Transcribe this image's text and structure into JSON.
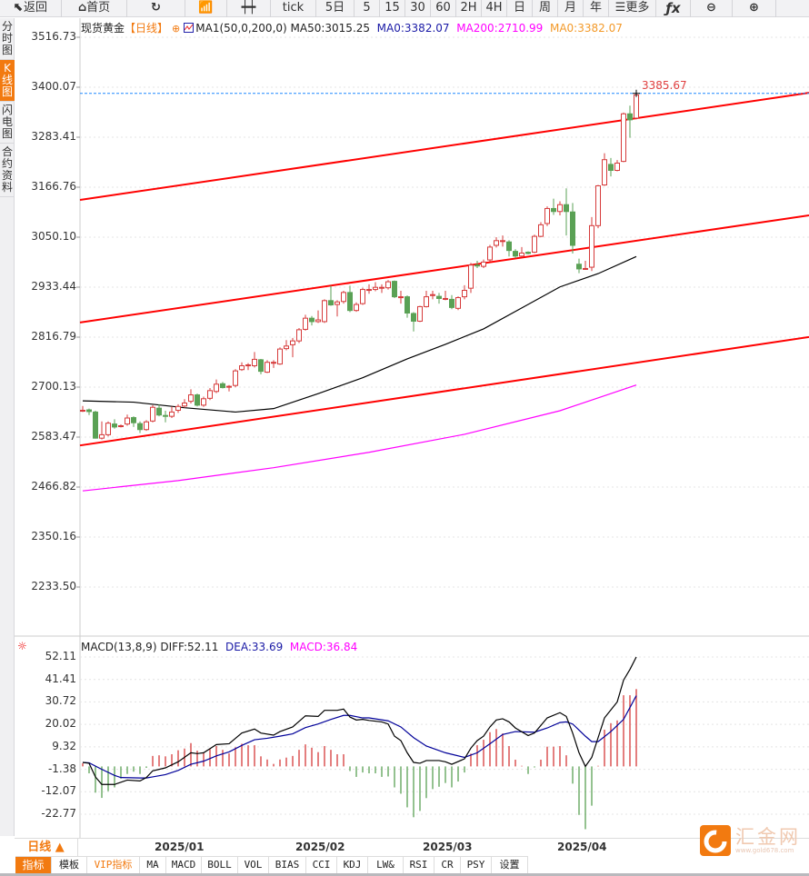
{
  "toolbar": {
    "items": [
      {
        "label": "返回",
        "icon": "back-arrow-icon"
      },
      {
        "label": "首页",
        "icon": "home-icon"
      },
      {
        "label": "",
        "icon": "refresh-icon"
      },
      {
        "label": "",
        "icon": "indicator-chart-icon"
      },
      {
        "label": "",
        "icon": "candlestick-icon"
      },
      {
        "label": "tick"
      },
      {
        "label": "5日"
      },
      {
        "label": "5"
      },
      {
        "label": "15"
      },
      {
        "label": "30"
      },
      {
        "label": "60"
      },
      {
        "label": "2H"
      },
      {
        "label": "4H"
      },
      {
        "label": "日"
      },
      {
        "label": "周"
      },
      {
        "label": "月"
      },
      {
        "label": "年"
      },
      {
        "label": "更多",
        "icon": "menu-icon"
      },
      {
        "label": "",
        "icon": "fx-icon"
      },
      {
        "label": "",
        "icon": "zoom-out-icon"
      },
      {
        "label": "",
        "icon": "zoom-in-icon"
      }
    ]
  },
  "side_tabs": [
    {
      "label": "分时图"
    },
    {
      "label": "K线图",
      "active": true
    },
    {
      "label": "闪电图"
    },
    {
      "label": "合约资料"
    }
  ],
  "legend": {
    "symbol": "现货黄金",
    "period": "【日线】",
    "ma_name": "MA1(50,0,200,0)",
    "ma50": "MA50:3015.25",
    "ma0a": "MA0:3382.07",
    "ma200": "MA200:2710.99",
    "ma0b": "MA0:3382.07"
  },
  "macd_legend": {
    "name": "MACD(13,8,9)",
    "diff": "DIFF:52.11",
    "dea": "DEA:33.69",
    "macd": "MACD:36.84"
  },
  "price_axis": [
    "3516.73",
    "3400.07",
    "3283.41",
    "3166.76",
    "3050.10",
    "2933.44",
    "2816.79",
    "2700.13",
    "2583.47",
    "2466.82",
    "2350.16",
    "2233.50"
  ],
  "macd_axis": [
    "52.11",
    "41.41",
    "30.72",
    "20.02",
    "9.32",
    "-1.38",
    "-12.07",
    "-22.77"
  ],
  "last_price": "3385.67",
  "date_labels": [
    "2025/01",
    "2025/02",
    "2025/03",
    "2025/04"
  ],
  "period_button": "日线 ▲",
  "bottom_tabs": [
    "指标",
    "模板",
    "VIP指标",
    "MA",
    "MACD",
    "BOLL",
    "VOL",
    "BIAS",
    "CCI",
    "KDJ",
    "LW&",
    "RSI",
    "CR",
    "PSY",
    "设置"
  ],
  "logo": {
    "text": "汇金网",
    "sub": "www.gold678.com"
  },
  "colors": {
    "up": "#d63a3a",
    "down": "#5aa155",
    "ma50": "#000000",
    "ma200": "#ff00ff",
    "trendline": "#ff0000",
    "dea": "#000099",
    "accent": "#f27a10",
    "last_price_line": "#1e88ff"
  },
  "chart_data": [
    {
      "type": "candlestick",
      "ylim": [
        2200,
        3540
      ],
      "ohlc": [
        [
          2646,
          2656,
          2642,
          2646
        ],
        [
          2647,
          2650,
          2635,
          2643
        ],
        [
          2642,
          2645,
          2580,
          2581
        ],
        [
          2581,
          2620,
          2578,
          2589
        ],
        [
          2589,
          2620,
          2585,
          2616
        ],
        [
          2614,
          2625,
          2603,
          2607
        ],
        [
          2609,
          2613,
          2606,
          2610
        ],
        [
          2614,
          2636,
          2610,
          2628
        ],
        [
          2629,
          2632,
          2607,
          2617
        ],
        [
          2615,
          2620,
          2593,
          2601
        ],
        [
          2601,
          2623,
          2598,
          2619
        ],
        [
          2621,
          2658,
          2618,
          2653
        ],
        [
          2651,
          2660,
          2632,
          2635
        ],
        [
          2634,
          2645,
          2618,
          2632
        ],
        [
          2632,
          2655,
          2628,
          2642
        ],
        [
          2646,
          2660,
          2640,
          2655
        ],
        [
          2656,
          2672,
          2652,
          2663
        ],
        [
          2667,
          2695,
          2662,
          2682
        ],
        [
          2682,
          2685,
          2655,
          2658
        ],
        [
          2658,
          2678,
          2654,
          2673
        ],
        [
          2674,
          2698,
          2670,
          2692
        ],
        [
          2690,
          2718,
          2686,
          2707
        ],
        [
          2708,
          2712,
          2697,
          2699
        ],
        [
          2700,
          2705,
          2690,
          2702
        ],
        [
          2704,
          2742,
          2700,
          2738
        ],
        [
          2741,
          2758,
          2738,
          2750
        ],
        [
          2752,
          2756,
          2740,
          2752
        ],
        [
          2750,
          2782,
          2746,
          2765
        ],
        [
          2764,
          2766,
          2730,
          2737
        ],
        [
          2735,
          2763,
          2733,
          2758
        ],
        [
          2758,
          2763,
          2745,
          2758
        ],
        [
          2754,
          2793,
          2752,
          2789
        ],
        [
          2790,
          2810,
          2786,
          2796
        ],
        [
          2799,
          2815,
          2770,
          2808
        ],
        [
          2808,
          2838,
          2803,
          2834
        ],
        [
          2835,
          2869,
          2832,
          2861
        ],
        [
          2861,
          2866,
          2844,
          2853
        ],
        [
          2853,
          2879,
          2850,
          2857
        ],
        [
          2853,
          2905,
          2850,
          2902
        ],
        [
          2902,
          2937,
          2890,
          2892
        ],
        [
          2893,
          2903,
          2865,
          2899
        ],
        [
          2900,
          2925,
          2895,
          2921
        ],
        [
          2921,
          2937,
          2875,
          2879
        ],
        [
          2879,
          2898,
          2876,
          2893
        ],
        [
          2895,
          2932,
          2892,
          2928
        ],
        [
          2928,
          2940,
          2918,
          2928
        ],
        [
          2928,
          2945,
          2924,
          2933
        ],
        [
          2933,
          2940,
          2920,
          2933
        ],
        [
          2932,
          2950,
          2928,
          2946
        ],
        [
          2947,
          2949,
          2908,
          2911
        ],
        [
          2909,
          2925,
          2895,
          2911
        ],
        [
          2911,
          2914,
          2862,
          2873
        ],
        [
          2872,
          2875,
          2830,
          2854
        ],
        [
          2854,
          2890,
          2852,
          2888
        ],
        [
          2888,
          2925,
          2886,
          2911
        ],
        [
          2914,
          2925,
          2905,
          2916
        ],
        [
          2912,
          2920,
          2895,
          2907
        ],
        [
          2905,
          2925,
          2903,
          2907
        ],
        [
          2905,
          2915,
          2882,
          2886
        ],
        [
          2884,
          2912,
          2880,
          2909
        ],
        [
          2911,
          2938,
          2905,
          2926
        ],
        [
          2931,
          2990,
          2920,
          2985
        ],
        [
          2985,
          2995,
          2978,
          2983
        ],
        [
          2982,
          2998,
          2978,
          2992
        ],
        [
          2997,
          3032,
          2993,
          3027
        ],
        [
          3031,
          3050,
          3026,
          3042
        ],
        [
          3042,
          3054,
          3028,
          3042
        ],
        [
          3039,
          3043,
          3005,
          3019
        ],
        [
          3017,
          3022,
          3001,
          3006
        ],
        [
          3006,
          3027,
          3003,
          3013
        ],
        [
          3015,
          3017,
          3010,
          3012
        ],
        [
          3015,
          3056,
          3013,
          3052
        ],
        [
          3052,
          3085,
          3050,
          3079
        ],
        [
          3082,
          3122,
          3076,
          3117
        ],
        [
          3117,
          3140,
          3102,
          3110
        ],
        [
          3110,
          3134,
          3101,
          3126
        ],
        [
          3126,
          3164,
          3054,
          3110
        ],
        [
          3109,
          3130,
          3012,
          3031
        ],
        [
          2987,
          3000,
          2966,
          2976
        ],
        [
          2976,
          2995,
          2974,
          2977
        ],
        [
          2980,
          3097,
          2971,
          3077
        ],
        [
          3077,
          3172,
          3071,
          3170
        ],
        [
          3172,
          3246,
          3170,
          3231
        ],
        [
          3220,
          3235,
          3192,
          3206
        ],
        [
          3206,
          3230,
          3204,
          3223
        ],
        [
          3227,
          3341,
          3225,
          3338
        ],
        [
          3338,
          3357,
          3282,
          3324
        ],
        [
          3328,
          3386,
          3325,
          3382
        ]
      ],
      "ma50": [
        [
          0,
          2668
        ],
        [
          8,
          2665
        ],
        [
          16,
          2652
        ],
        [
          24,
          2642
        ],
        [
          30,
          2650
        ],
        [
          37,
          2685
        ],
        [
          44,
          2722
        ],
        [
          51,
          2766
        ],
        [
          57,
          2800
        ],
        [
          63,
          2836
        ],
        [
          69,
          2885
        ],
        [
          75,
          2934
        ],
        [
          81,
          2965
        ],
        [
          87,
          3005
        ]
      ],
      "ma200": [
        [
          0,
          2458
        ],
        [
          15,
          2482
        ],
        [
          30,
          2512
        ],
        [
          45,
          2548
        ],
        [
          60,
          2590
        ],
        [
          75,
          2645
        ],
        [
          87,
          2705
        ]
      ],
      "trendlines": [
        [
          3137,
          3387
        ],
        [
          2851,
          3101
        ],
        [
          2564,
          2817
        ]
      ]
    },
    {
      "type": "macd",
      "ylim": [
        -33,
        56
      ],
      "histogram": [
        1.5,
        -3.3,
        -12.5,
        -15,
        -11.8,
        -10,
        -5.8,
        -3.6,
        -2.5,
        -3.6,
        -0.7,
        5,
        5.3,
        4.8,
        5.8,
        7.7,
        8.5,
        11.1,
        7.5,
        6.5,
        8.2,
        9.7,
        7.9,
        6.2,
        9.1,
        10.8,
        10.1,
        10.1,
        4.8,
        3.3,
        1.2,
        3.3,
        4.2,
        5,
        7.9,
        10.5,
        8.9,
        6.8,
        9.7,
        7.9,
        5.8,
        5.8,
        -2.2,
        -5,
        -2.9,
        -3.3,
        -3.3,
        -5,
        -4.8,
        -10,
        -13,
        -19.5,
        -24.2,
        -21.2,
        -15.1,
        -10.8,
        -9.7,
        -7.9,
        -10,
        -7.2,
        -2.9,
        6.1,
        10.1,
        12.7,
        16.3,
        17.8,
        15.7,
        9.7,
        3.2,
        0.3,
        -3.6,
        -0.5,
        3.2,
        9.4,
        9.4,
        9.7,
        5.3,
        -8.2,
        -23.1,
        -29.9,
        -18.7,
        0.3,
        17.5,
        20.6,
        21.9,
        33.9,
        33.9,
        36.84
      ],
      "diff": [
        [
          0,
          1.9
        ],
        [
          1,
          1.5
        ],
        [
          2,
          -5
        ],
        [
          3,
          -8.6
        ],
        [
          5,
          -8.6
        ],
        [
          7,
          -6.5
        ],
        [
          9,
          -6.9
        ],
        [
          10,
          -5.3
        ],
        [
          11,
          -2.1
        ],
        [
          13,
          -0.7
        ],
        [
          15,
          2.2
        ],
        [
          17,
          6.5
        ],
        [
          18,
          6.1
        ],
        [
          19,
          6.5
        ],
        [
          21,
          10.4
        ],
        [
          23,
          10.8
        ],
        [
          25,
          15.9
        ],
        [
          27,
          17.8
        ],
        [
          28,
          15.9
        ],
        [
          30,
          14.9
        ],
        [
          31,
          16.6
        ],
        [
          33,
          18.8
        ],
        [
          35,
          24.1
        ],
        [
          37,
          23.8
        ],
        [
          38,
          26.7
        ],
        [
          40,
          26.7
        ],
        [
          41,
          27.3
        ],
        [
          42,
          23.5
        ],
        [
          43,
          22.1
        ],
        [
          44,
          22.4
        ],
        [
          45,
          21.9
        ],
        [
          47,
          21.2
        ],
        [
          48,
          20.2
        ],
        [
          49,
          14.4
        ],
        [
          50,
          12.3
        ],
        [
          51,
          6.5
        ],
        [
          52,
          1.9
        ],
        [
          53,
          1.5
        ],
        [
          54,
          2.8
        ],
        [
          56,
          2.8
        ],
        [
          57,
          2.2
        ],
        [
          58,
          1
        ],
        [
          60,
          3.6
        ],
        [
          61,
          8.7
        ],
        [
          62,
          12.3
        ],
        [
          63,
          14.4
        ],
        [
          64,
          18.8
        ],
        [
          65,
          22.1
        ],
        [
          66,
          22.7
        ],
        [
          67,
          21.2
        ],
        [
          68,
          18.3
        ],
        [
          70,
          14.7
        ],
        [
          71,
          15.9
        ],
        [
          73,
          23.1
        ],
        [
          75,
          25.6
        ],
        [
          76,
          23.8
        ],
        [
          77,
          15.9
        ],
        [
          78,
          6.5
        ],
        [
          79,
          0
        ],
        [
          80,
          4.3
        ],
        [
          81,
          13.7
        ],
        [
          82,
          23.1
        ],
        [
          84,
          30.7
        ],
        [
          85,
          41.1
        ],
        [
          86,
          46.2
        ],
        [
          87,
          52.11
        ]
      ],
      "dea": [
        [
          0,
          1.9
        ],
        [
          1,
          1.7
        ],
        [
          3,
          -1.4
        ],
        [
          5,
          -4.3
        ],
        [
          6,
          -5.3
        ],
        [
          9,
          -5.5
        ],
        [
          10,
          -5.5
        ],
        [
          11,
          -5
        ],
        [
          13,
          -3.9
        ],
        [
          15,
          -1.9
        ],
        [
          17,
          1
        ],
        [
          19,
          2.5
        ],
        [
          21,
          5
        ],
        [
          23,
          6.9
        ],
        [
          25,
          10
        ],
        [
          27,
          12.7
        ],
        [
          29,
          13.4
        ],
        [
          31,
          14.4
        ],
        [
          33,
          15.5
        ],
        [
          35,
          18.5
        ],
        [
          37,
          20.2
        ],
        [
          39,
          22.4
        ],
        [
          41,
          24.3
        ],
        [
          42,
          24.3
        ],
        [
          44,
          23.1
        ],
        [
          45,
          23.1
        ],
        [
          48,
          21.7
        ],
        [
          50,
          18.8
        ],
        [
          52,
          13.7
        ],
        [
          54,
          9.7
        ],
        [
          57,
          6.5
        ],
        [
          60,
          4.3
        ],
        [
          62,
          6.5
        ],
        [
          64,
          10.8
        ],
        [
          66,
          15.2
        ],
        [
          68,
          16.6
        ],
        [
          71,
          16.3
        ],
        [
          73,
          18.3
        ],
        [
          75,
          20.9
        ],
        [
          76,
          21.2
        ],
        [
          77,
          20.2
        ],
        [
          79,
          14.4
        ],
        [
          80,
          11.8
        ],
        [
          81,
          11.8
        ],
        [
          83,
          16.6
        ],
        [
          85,
          22.4
        ],
        [
          87,
          33.69
        ]
      ]
    }
  ]
}
